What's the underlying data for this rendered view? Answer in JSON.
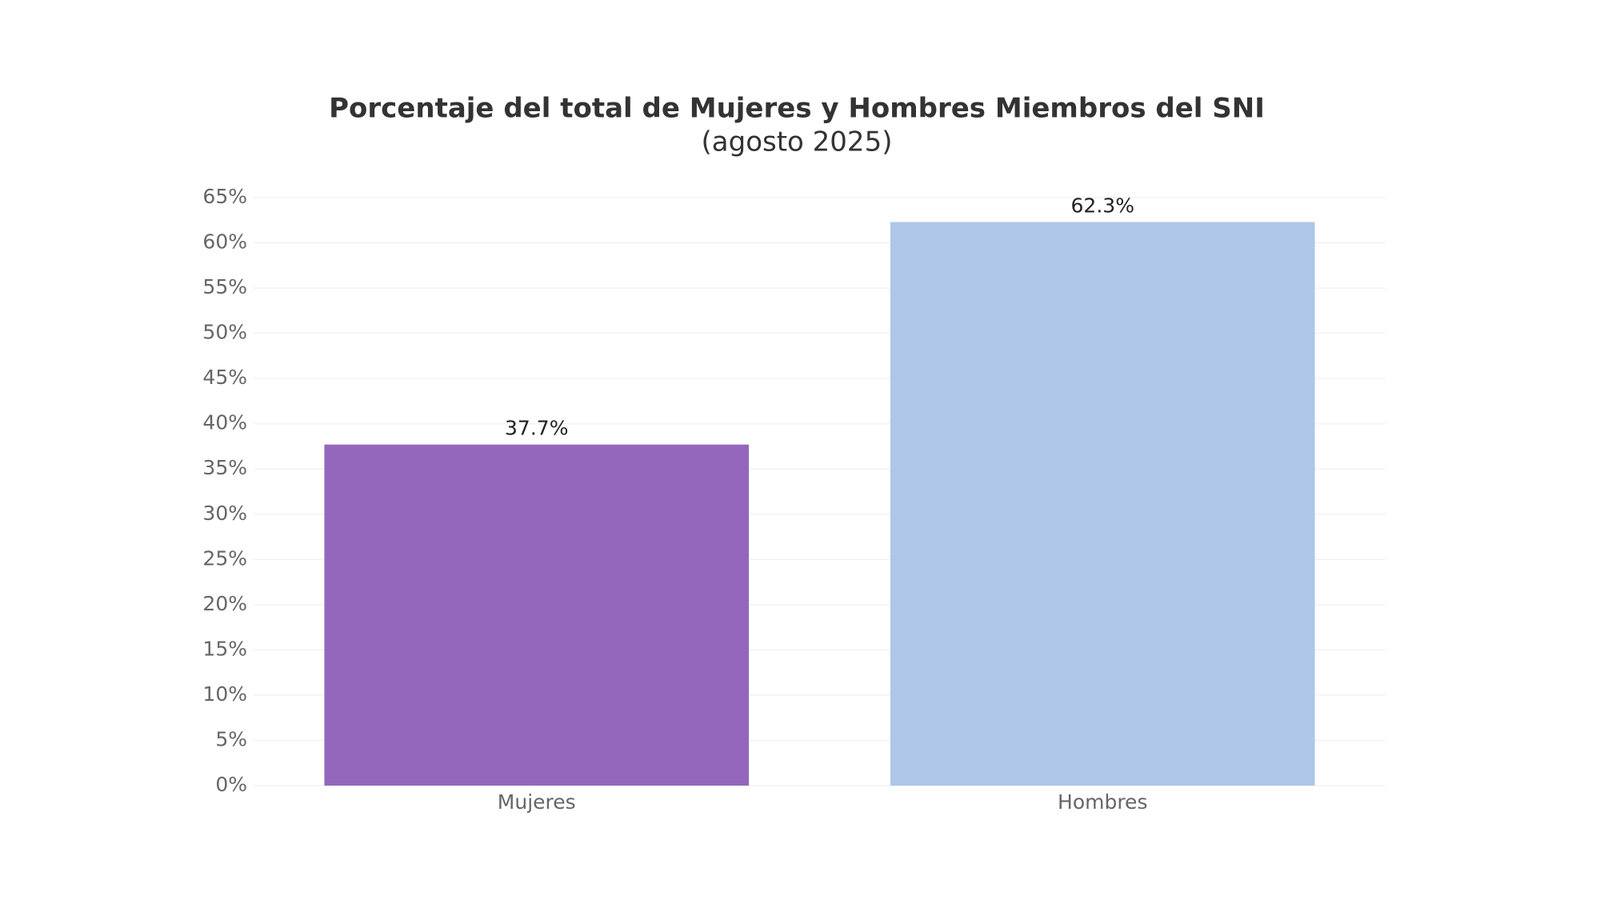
{
  "chart_data": {
    "type": "bar",
    "title": "Porcentaje del total de Mujeres y Hombres Miembros del SNI",
    "subtitle": "(agosto 2025)",
    "categories": [
      "Mujeres",
      "Hombres"
    ],
    "values": [
      37.7,
      62.3
    ],
    "value_labels": [
      "37.7%",
      "62.3%"
    ],
    "colors": [
      "#9467bd",
      "#aec7e8"
    ],
    "ylim": [
      0,
      65
    ],
    "yticks": [
      {
        "value": 0,
        "label": "0%"
      },
      {
        "value": 5,
        "label": "5%"
      },
      {
        "value": 10,
        "label": "10%"
      },
      {
        "value": 15,
        "label": "15%"
      },
      {
        "value": 20,
        "label": "20%"
      },
      {
        "value": 25,
        "label": "25%"
      },
      {
        "value": 30,
        "label": "30%"
      },
      {
        "value": 35,
        "label": "35%"
      },
      {
        "value": 40,
        "label": "40%"
      },
      {
        "value": 45,
        "label": "45%"
      },
      {
        "value": 50,
        "label": "50%"
      },
      {
        "value": 55,
        "label": "55%"
      },
      {
        "value": 60,
        "label": "60%"
      },
      {
        "value": 65,
        "label": "65%"
      }
    ],
    "grid": true
  }
}
